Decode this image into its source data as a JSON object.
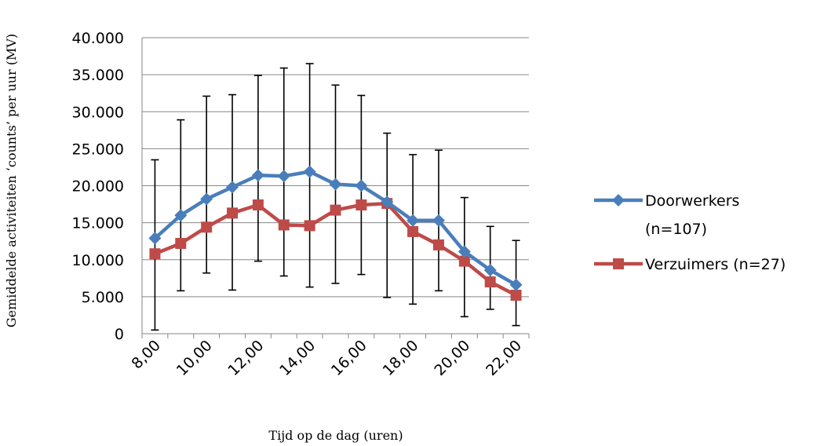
{
  "chart_data": {
    "type": "line",
    "title": "",
    "xlabel": "Tijd op de dag (uren)",
    "ylabel": "Gemiddelde activiteiten ‘counts’ per uur (MV)",
    "ylim": [
      0,
      40000
    ],
    "y_ticks": [
      "0",
      "5.000",
      "10.000",
      "15.000",
      "20.000",
      "25.000",
      "30.000",
      "35.000",
      "40.000"
    ],
    "x_tick_labels": [
      "8,00",
      "10,00",
      "12,00",
      "14,00",
      "16,00",
      "18,00",
      "20,00",
      "22,00"
    ],
    "x": [
      8,
      9,
      10,
      11,
      12,
      13,
      14,
      15,
      16,
      17,
      18,
      19,
      20,
      21,
      22
    ],
    "grid": true,
    "legend_position": "right",
    "series": [
      {
        "name": "Doorwerkers (n=107)",
        "legend_lines": [
          "Doorwerkers",
          "(n=107)"
        ],
        "color": "#4a7ebb",
        "marker": "diamond",
        "values": [
          12900,
          16000,
          18200,
          19800,
          21400,
          21300,
          21900,
          20200,
          20000,
          17800,
          15300,
          15300,
          11100,
          8600,
          6600
        ],
        "error_low": [
          500,
          5800,
          8200,
          5900,
          9800,
          7800,
          6300,
          6800,
          8000,
          4900,
          4000,
          5800,
          2300,
          3300,
          1100
        ],
        "error_high": [
          23500,
          28900,
          32100,
          32300,
          34900,
          35900,
          36500,
          33600,
          32200,
          27100,
          24200,
          24800,
          18400,
          14500,
          12600
        ]
      },
      {
        "name": "Verzuimers (n=27)",
        "legend_lines": [
          "Verzuimers (n=27)"
        ],
        "color": "#be4b48",
        "marker": "square",
        "values": [
          10800,
          12200,
          14400,
          16300,
          17400,
          14700,
          14600,
          16700,
          17400,
          17600,
          13800,
          12000,
          9800,
          7000,
          5200
        ]
      }
    ]
  }
}
